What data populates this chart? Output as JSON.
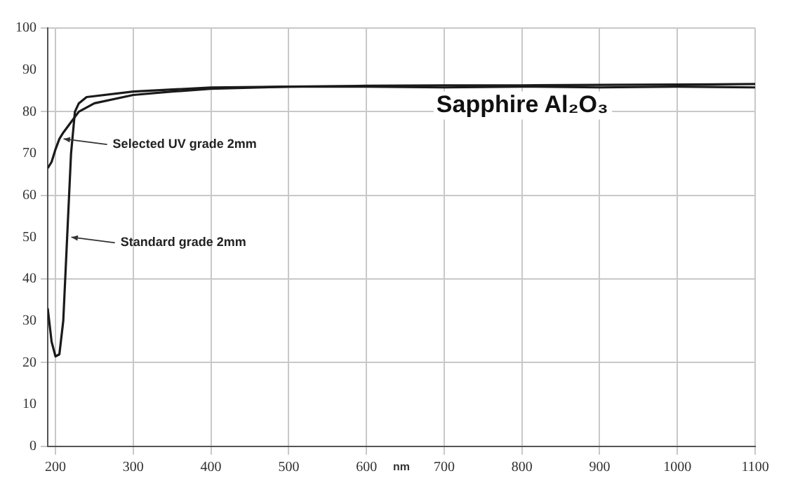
{
  "chart_data": {
    "type": "line",
    "xlabel": "nm",
    "xlim": [
      190,
      1100
    ],
    "xticks": [
      200,
      300,
      400,
      500,
      600,
      700,
      800,
      900,
      1000,
      1100
    ],
    "ylim": [
      0,
      100
    ],
    "yticks": [
      0,
      10,
      20,
      30,
      40,
      50,
      60,
      70,
      80,
      90,
      100
    ],
    "grid": true,
    "legend": false,
    "marker": "none",
    "line_style": "solid",
    "annotations": [
      "Sapphire Al₂O₃",
      {
        "text": "Selected UV grade 2mm",
        "x": 205,
        "y": 73.5
      },
      {
        "text": "Standard grade 2mm",
        "x": 215,
        "y": 50
      }
    ],
    "series": [
      {
        "color": "#1a1a1a",
        "x": [
          190,
          195,
          200,
          205,
          210,
          220,
          230,
          250,
          300,
          350,
          400,
          500,
          600,
          700,
          800,
          900,
          1000,
          1100
        ],
        "values": [
          66.5,
          68,
          71,
          73.5,
          75,
          77.5,
          80,
          82,
          84,
          84.8,
          85.5,
          86,
          86.2,
          86.3,
          86.3,
          86.4,
          86.5,
          86.6
        ]
      },
      {
        "color": "#1a1a1a",
        "x": [
          190,
          195,
          200,
          205,
          210,
          215,
          220,
          225,
          230,
          240,
          300,
          400,
          500,
          600,
          700,
          800,
          900,
          1000,
          1100
        ],
        "values": [
          33,
          25,
          21.5,
          22,
          30,
          50,
          70,
          80,
          82,
          83.5,
          84.8,
          85.8,
          86,
          86,
          85.8,
          86,
          85.8,
          86,
          85.8
        ]
      }
    ]
  }
}
